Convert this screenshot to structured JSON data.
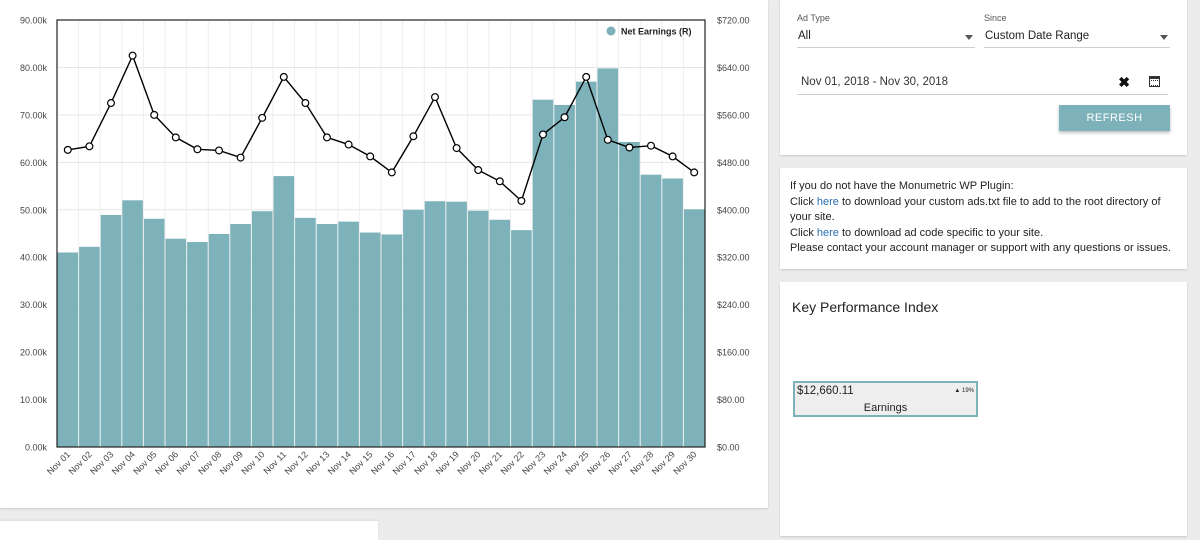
{
  "chart_data": {
    "type": "bar",
    "categories": [
      "Nov 01",
      "Nov 02",
      "Nov 03",
      "Nov 04",
      "Nov 05",
      "Nov 06",
      "Nov 07",
      "Nov 08",
      "Nov 09",
      "Nov 10",
      "Nov 11",
      "Nov 12",
      "Nov 13",
      "Nov 14",
      "Nov 15",
      "Nov 16",
      "Nov 17",
      "Nov 18",
      "Nov 19",
      "Nov 20",
      "Nov 21",
      "Nov 22",
      "Nov 23",
      "Nov 24",
      "Nov 25",
      "Nov 26",
      "Nov 27",
      "Nov 28",
      "Nov 29",
      "Nov 30"
    ],
    "series": [
      {
        "type": "bar",
        "axis": "left",
        "values": [
          41000,
          42200,
          48900,
          52000,
          48100,
          43900,
          43200,
          44900,
          47000,
          49700,
          57100,
          48300,
          47000,
          47500,
          45200,
          44800,
          50000,
          51800,
          51700,
          49800,
          47900,
          45700,
          73200,
          72100,
          77000,
          79800,
          64300,
          57400,
          56600,
          50100
        ]
      },
      {
        "type": "line",
        "axis": "right",
        "name": "Net Earnings (R)",
        "values": [
          501,
          507,
          580,
          660,
          560,
          522,
          502,
          500,
          488,
          555,
          624,
          580,
          522,
          510,
          490,
          463,
          524,
          590,
          504,
          467,
          448,
          415,
          527,
          556,
          624,
          518,
          505,
          508,
          490,
          463
        ]
      }
    ],
    "left_axis": {
      "min": 0,
      "max": 90000,
      "ticks": [
        "0.00k",
        "10.00k",
        "20.00k",
        "30.00k",
        "40.00k",
        "50.00k",
        "60.00k",
        "70.00k",
        "80.00k",
        "90.00k"
      ]
    },
    "right_axis": {
      "min": 0,
      "max": 720,
      "ticks": [
        "$0.00",
        "$80.00",
        "$160.00",
        "$240.00",
        "$320.00",
        "$400.00",
        "$480.00",
        "$560.00",
        "$640.00",
        "$720.00"
      ]
    },
    "legend": "top-right",
    "grid": true,
    "colors": {
      "bar": "#7db2ba",
      "line": "#000000"
    }
  },
  "filters": {
    "ad_type_label": "Ad Type",
    "ad_type_value": "All",
    "since_label": "Since",
    "since_value": "Custom Date Range",
    "date_range": "Nov 01, 2018 - Nov 30, 2018",
    "clear_symbol": "✖",
    "refresh_label": "REFRESH"
  },
  "info": {
    "line1": "If you do not have the Monumetric WP Plugin:",
    "click": "Click ",
    "here": "here",
    "line2_rest": " to download your custom ads.txt file to add to the root directory of your site.",
    "line3_rest": " to download ad code specific to your site.",
    "line4": "Please contact your account manager or support with any questions or issues."
  },
  "kpi": {
    "title": "Key Performance Index",
    "value": "$12,660.11",
    "change": "▲ 19%",
    "label": "Earnings"
  }
}
